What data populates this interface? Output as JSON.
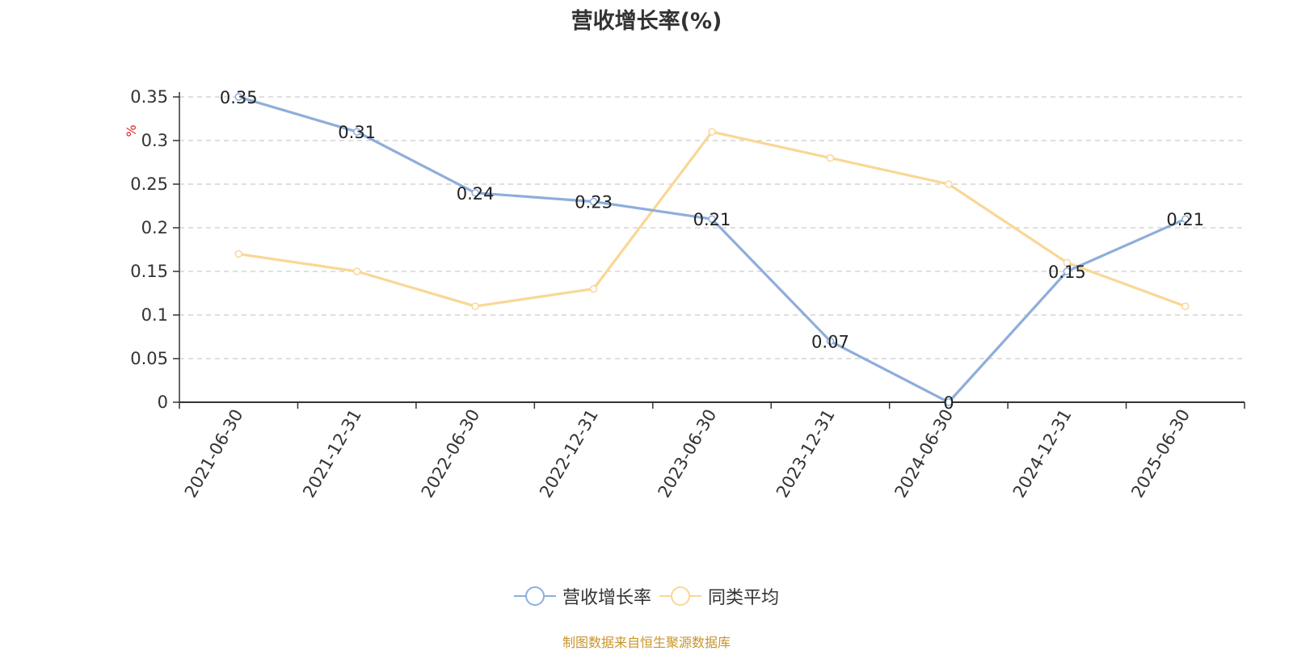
{
  "chart_data": {
    "type": "line",
    "title": "营收增长率(%)",
    "ylabel": "%",
    "xlabel": "",
    "categories": [
      "2021-06-30",
      "2021-12-31",
      "2022-06-30",
      "2022-12-31",
      "2023-06-30",
      "2023-12-31",
      "2024-06-30",
      "2024-12-31",
      "2025-06-30"
    ],
    "ylim": [
      0,
      0.35
    ],
    "yticks": [
      0,
      0.05,
      0.1,
      0.15,
      0.2,
      0.25,
      0.3,
      0.35
    ],
    "ytick_labels": [
      "0",
      "0.05",
      "0.1",
      "0.15",
      "0.2",
      "0.25",
      "0.3",
      "0.35"
    ],
    "grid": "horizontal dashed",
    "legend_position": "bottom",
    "series": [
      {
        "name": "营收增长率",
        "color": "#8eaedb",
        "values": [
          0.35,
          0.31,
          0.24,
          0.23,
          0.21,
          0.07,
          0,
          0.15,
          0.21
        ],
        "data_labels": [
          "0.35",
          "0.31",
          "0.24",
          "0.23",
          "0.21",
          "0.07",
          "0",
          "0.15",
          "0.21"
        ]
      },
      {
        "name": "同类平均",
        "color": "#f9d795",
        "values": [
          0.17,
          0.15,
          0.11,
          0.13,
          0.31,
          0.28,
          0.25,
          0.16,
          0.11
        ]
      }
    ]
  },
  "source_text": "制图数据来自恒生聚源数据库"
}
